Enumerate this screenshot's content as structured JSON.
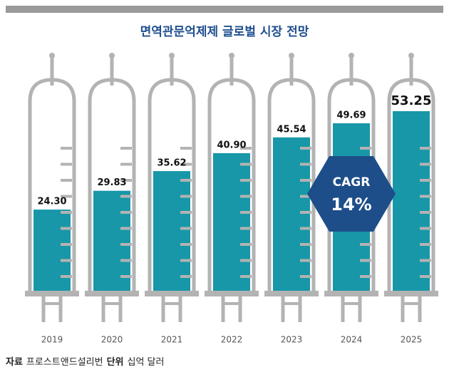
{
  "chart_data": {
    "type": "bar",
    "title": "면역관문억제제 글로벌 시장 전망",
    "categories": [
      "2019",
      "2020",
      "2021",
      "2022",
      "2023",
      "2024",
      "2025"
    ],
    "values": [
      24.3,
      29.83,
      35.62,
      40.9,
      45.54,
      49.69,
      53.25
    ],
    "value_labels": [
      "24.30",
      "29.83",
      "35.62",
      "40.90",
      "45.54",
      "49.69",
      "53.25"
    ],
    "color": "#1797a8",
    "annotation": {
      "label": "CAGR",
      "value": "14%"
    },
    "source_label": "자료",
    "source": "프로스트앤드설리번",
    "unit_label": "단위",
    "unit": "십억 달러"
  }
}
